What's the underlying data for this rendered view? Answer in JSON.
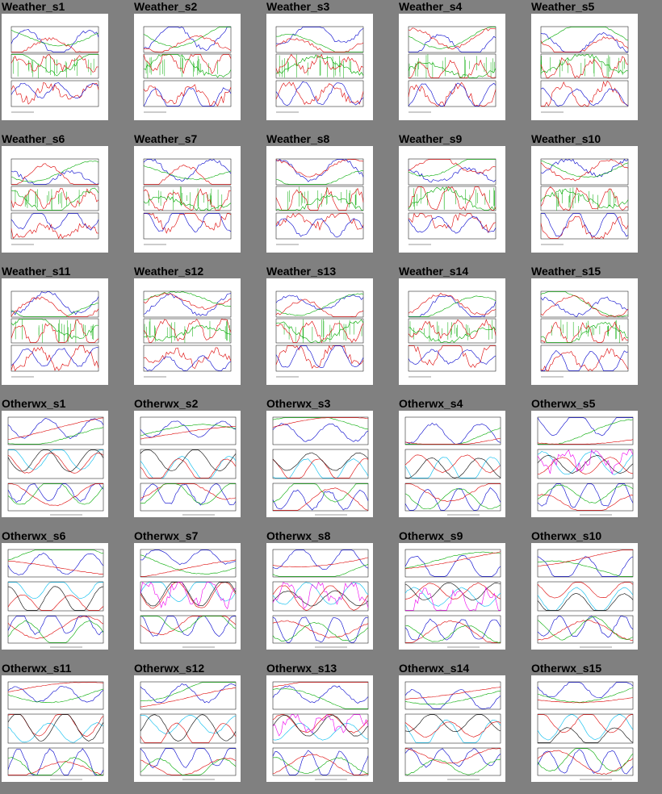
{
  "weather_titles": [
    "Weather_s1",
    "Weather_s2",
    "Weather_s3",
    "Weather_s4",
    "Weather_s5",
    "Weather_s6",
    "Weather_s7",
    "Weather_s8",
    "Weather_s9",
    "Weather_s10",
    "Weather_s11",
    "Weather_s12",
    "Weather_s13",
    "Weather_s14",
    "Weather_s15"
  ],
  "otherwx_titles": [
    "Otherwx_s1",
    "Otherwx_s2",
    "Otherwx_s3",
    "Otherwx_s4",
    "Otherwx_s5",
    "Otherwx_s6",
    "Otherwx_s7",
    "Otherwx_s8",
    "Otherwx_s9",
    "Otherwx_s10",
    "Otherwx_s11",
    "Otherwx_s12",
    "Otherwx_s13",
    "Otherwx_s14",
    "Otherwx_s15"
  ],
  "colors": {
    "background": "#808080",
    "thumb_bg": "#ffffff",
    "series": [
      "#0000cc",
      "#dd0000",
      "#00aa00",
      "#00bbee",
      "#ee00ee",
      "#000000"
    ]
  }
}
